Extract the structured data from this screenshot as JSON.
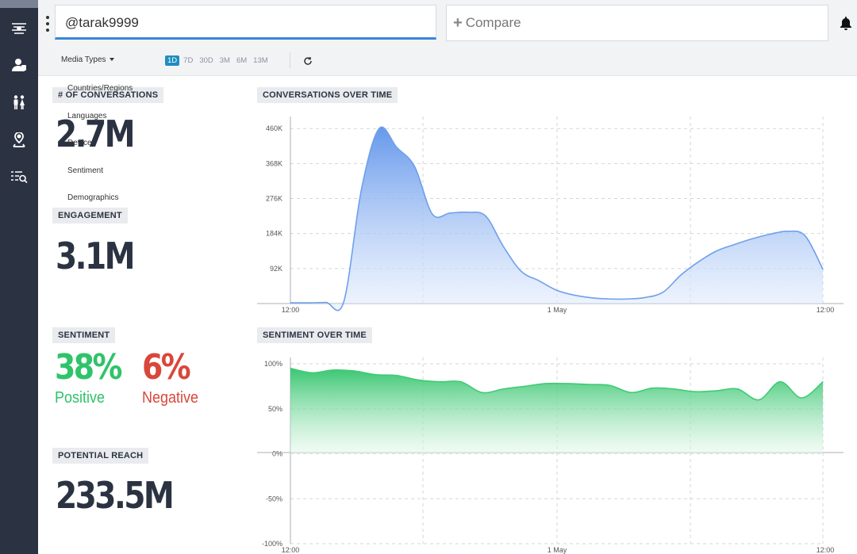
{
  "search": {
    "value": "@tarak9999"
  },
  "compare": {
    "label": "Compare"
  },
  "toolbar": {
    "media_types": "Media Types",
    "ranges": [
      "1D",
      "7D",
      "30D",
      "3M",
      "6M",
      "13M"
    ],
    "active_range": "1D"
  },
  "filter_menu": [
    "Countries/Regions",
    "Languages",
    "Device",
    "Sentiment",
    "Demographics"
  ],
  "sidebar": {
    "icons": [
      "dashboard-icon",
      "users-icon",
      "people-icon",
      "location-icon",
      "list-search-icon"
    ]
  },
  "metrics": {
    "conversations": {
      "label": "# OF CONVERSATIONS",
      "value": "2.7M"
    },
    "engagement": {
      "label": "ENGAGEMENT",
      "value": "3.1M"
    },
    "sentiment": {
      "label": "SENTIMENT",
      "positive_value": "38%",
      "positive_label": "Positive",
      "negative_value": "6%",
      "negative_label": "Negative"
    },
    "reach": {
      "label": "POTENTIAL REACH",
      "value": "233.5M"
    }
  },
  "colors": {
    "sidebar": "#2b3342",
    "accent": "#1f8dc1",
    "positive": "#2fc36a",
    "negative": "#d9473a",
    "conversations_line": "#6ea0ea",
    "sentiment_fill": "#4fd07e"
  },
  "chart_data": [
    {
      "type": "area",
      "title": "CONVERSATIONS OVER TIME",
      "x_ticks": [
        "12:00",
        "1 May",
        "12:00"
      ],
      "y_ticks": [
        "92K",
        "184K",
        "276K",
        "368K",
        "460K"
      ],
      "ylim": [
        0,
        475000
      ],
      "grid": true,
      "series": [
        {
          "values": [
            [
              "12:00",
              2000
            ],
            [
              "03:00",
              2000
            ],
            [
              "06:00",
              3000
            ],
            [
              "07:00",
              4000
            ],
            [
              "08:00",
              300000
            ],
            [
              "09:00",
              460000
            ],
            [
              "10:00",
              410000
            ],
            [
              "11:00",
              360000
            ],
            [
              "12:00",
              235000
            ],
            [
              "13:00",
              238000
            ],
            [
              "14:00",
              240000
            ],
            [
              "15:00",
              230000
            ],
            [
              "16:00",
              150000
            ],
            [
              "17:00",
              85000
            ],
            [
              "18:00",
              60000
            ],
            [
              "19:00",
              35000
            ],
            [
              "20:00",
              22000
            ],
            [
              "21:00",
              15000
            ],
            [
              "22:00",
              12000
            ],
            [
              "23:00",
              12000
            ],
            [
              "00:00",
              16000
            ],
            [
              "01:00",
              30000
            ],
            [
              "02:00",
              75000
            ],
            [
              "03:00",
              110000
            ],
            [
              "04:00",
              138000
            ],
            [
              "05:00",
              155000
            ],
            [
              "06:00",
              170000
            ],
            [
              "07:00",
              182000
            ],
            [
              "08:00",
              190000
            ],
            [
              "09:00",
              178000
            ],
            [
              "10:00",
              90000
            ]
          ]
        }
      ]
    },
    {
      "type": "area",
      "title": "SENTIMENT OVER TIME",
      "x_ticks": [
        "12:00",
        "1 May",
        "12:00"
      ],
      "y_ticks": [
        "100%",
        "50%",
        "0%",
        "-50%",
        "-100%"
      ],
      "ylim": [
        -100,
        100
      ],
      "grid": true,
      "series": [
        {
          "values": [
            [
              "12:00",
              95
            ],
            [
              "01:00",
              90
            ],
            [
              "02:00",
              93
            ],
            [
              "03:00",
              92
            ],
            [
              "04:00",
              88
            ],
            [
              "05:00",
              87
            ],
            [
              "06:00",
              82
            ],
            [
              "07:00",
              80
            ],
            [
              "08:00",
              80
            ],
            [
              "09:00",
              68
            ],
            [
              "10:00",
              72
            ],
            [
              "11:00",
              75
            ],
            [
              "12:00",
              78
            ],
            [
              "13:00",
              78
            ],
            [
              "14:00",
              77
            ],
            [
              "15:00",
              76
            ],
            [
              "16:00",
              68
            ],
            [
              "17:00",
              73
            ],
            [
              "18:00",
              72
            ],
            [
              "19:00",
              69
            ],
            [
              "20:00",
              70
            ],
            [
              "21:00",
              72
            ],
            [
              "22:00",
              60
            ],
            [
              "23:00",
              80
            ],
            [
              "00:00",
              62
            ],
            [
              "01:00",
              80
            ]
          ]
        }
      ]
    }
  ]
}
